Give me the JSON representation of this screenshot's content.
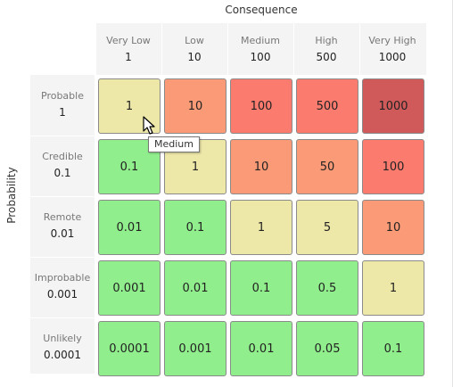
{
  "axis": {
    "consequence_title": "Consequence",
    "probability_title": "Probability"
  },
  "columns": [
    {
      "label": "Very Low",
      "value": "1"
    },
    {
      "label": "Low",
      "value": "10"
    },
    {
      "label": "Medium",
      "value": "100"
    },
    {
      "label": "High",
      "value": "500"
    },
    {
      "label": "Very High",
      "value": "1000"
    }
  ],
  "rows": [
    {
      "label": "Probable",
      "value": "1"
    },
    {
      "label": "Credible",
      "value": "0.1"
    },
    {
      "label": "Remote",
      "value": "0.01"
    },
    {
      "label": "Improbable",
      "value": "0.001"
    },
    {
      "label": "Unlikely",
      "value": "0.0001"
    }
  ],
  "cells": [
    [
      {
        "value": "1",
        "color": "#ede7a8"
      },
      {
        "value": "10",
        "color": "#fb9a76"
      },
      {
        "value": "100",
        "color": "#fb7b6f"
      },
      {
        "value": "500",
        "color": "#fb7b6f"
      },
      {
        "value": "1000",
        "color": "#d05a5a"
      }
    ],
    [
      {
        "value": "0.1",
        "color": "#90ee8c"
      },
      {
        "value": "1",
        "color": "#ede7a8"
      },
      {
        "value": "10",
        "color": "#fb9a76"
      },
      {
        "value": "50",
        "color": "#fb9a76"
      },
      {
        "value": "100",
        "color": "#fb7b6f"
      }
    ],
    [
      {
        "value": "0.01",
        "color": "#90ee8c"
      },
      {
        "value": "0.1",
        "color": "#90ee8c"
      },
      {
        "value": "1",
        "color": "#ede7a8"
      },
      {
        "value": "5",
        "color": "#ede7a8"
      },
      {
        "value": "10",
        "color": "#fb9a76"
      }
    ],
    [
      {
        "value": "0.001",
        "color": "#90ee8c"
      },
      {
        "value": "0.01",
        "color": "#90ee8c"
      },
      {
        "value": "0.1",
        "color": "#90ee8c"
      },
      {
        "value": "0.5",
        "color": "#90ee8c"
      },
      {
        "value": "1",
        "color": "#ede7a8"
      }
    ],
    [
      {
        "value": "0.0001",
        "color": "#90ee8c"
      },
      {
        "value": "0.001",
        "color": "#90ee8c"
      },
      {
        "value": "0.01",
        "color": "#90ee8c"
      },
      {
        "value": "0.05",
        "color": "#90ee8c"
      },
      {
        "value": "0.1",
        "color": "#90ee8c"
      }
    ]
  ],
  "tooltip": {
    "text": "Medium"
  }
}
